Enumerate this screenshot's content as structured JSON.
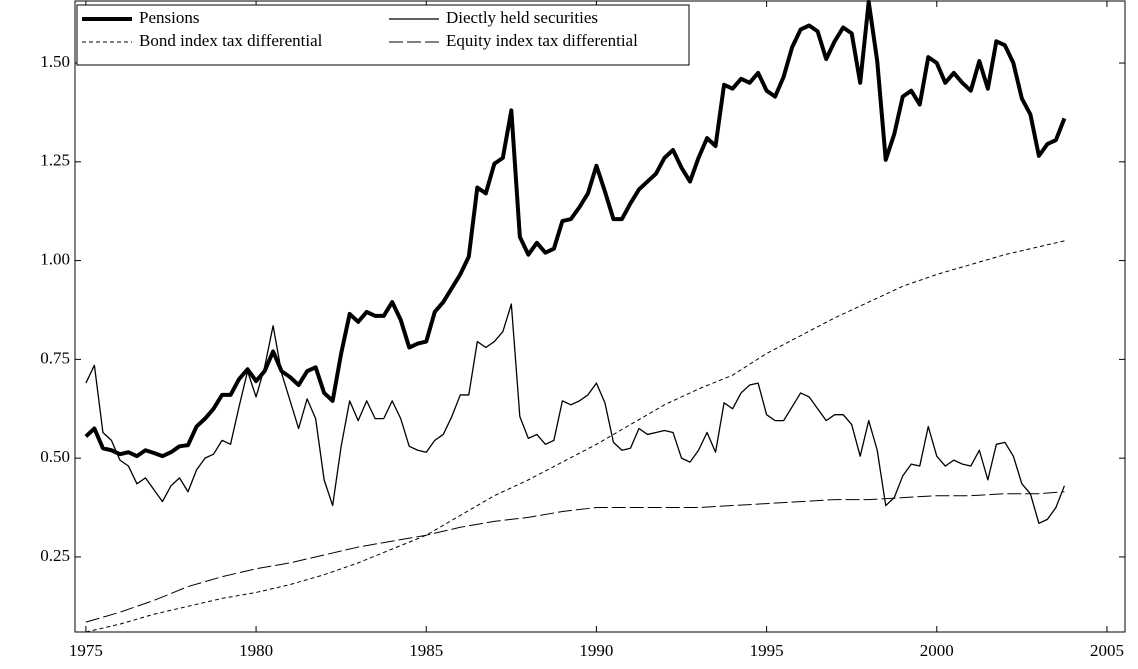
{
  "chart_data": {
    "type": "line",
    "x": [
      1975,
      1975.25,
      1975.5,
      1975.75,
      1976,
      1976.25,
      1976.5,
      1976.75,
      1977,
      1977.25,
      1977.5,
      1977.75,
      1978,
      1978.25,
      1978.5,
      1978.75,
      1979,
      1979.25,
      1979.5,
      1979.75,
      1980,
      1980.25,
      1980.5,
      1980.75,
      1981,
      1981.25,
      1981.5,
      1981.75,
      1982,
      1982.25,
      1982.5,
      1982.75,
      1983,
      1983.25,
      1983.5,
      1983.75,
      1984,
      1984.25,
      1984.5,
      1984.75,
      1985,
      1985.25,
      1985.5,
      1985.75,
      1986,
      1986.25,
      1986.5,
      1986.75,
      1987,
      1987.25,
      1987.5,
      1987.75,
      1988,
      1988.25,
      1988.5,
      1988.75,
      1989,
      1989.25,
      1989.5,
      1989.75,
      1990,
      1990.25,
      1990.5,
      1990.75,
      1991,
      1991.25,
      1991.5,
      1991.75,
      1992,
      1992.25,
      1992.5,
      1992.75,
      1993,
      1993.25,
      1993.5,
      1993.75,
      1994,
      1994.25,
      1994.5,
      1994.75,
      1995,
      1995.25,
      1995.5,
      1995.75,
      1996,
      1996.25,
      1996.5,
      1996.75,
      1997,
      1997.25,
      1997.5,
      1997.75,
      1998,
      1998.25,
      1998.5,
      1998.75,
      1999,
      1999.25,
      1999.5,
      1999.75,
      2000,
      2000.25,
      2000.5,
      2000.75,
      2001,
      2001.25,
      2001.5,
      2001.75,
      2002,
      2002.25,
      2002.5,
      2002.75,
      2003,
      2003.25,
      2003.5,
      2003.75
    ],
    "series": [
      {
        "name": "Pensions",
        "color": "#000000",
        "width": 4,
        "dash": "none",
        "values": [
          0.555,
          0.575,
          0.525,
          0.52,
          0.51,
          0.515,
          0.505,
          0.52,
          0.513,
          0.505,
          0.515,
          0.53,
          0.533,
          0.58,
          0.6,
          0.625,
          0.66,
          0.66,
          0.7,
          0.725,
          0.695,
          0.72,
          0.77,
          0.72,
          0.705,
          0.685,
          0.72,
          0.73,
          0.665,
          0.645,
          0.765,
          0.865,
          0.845,
          0.87,
          0.86,
          0.86,
          0.895,
          0.85,
          0.78,
          0.79,
          0.795,
          0.87,
          0.895,
          0.93,
          0.965,
          1.01,
          1.185,
          1.17,
          1.245,
          1.26,
          1.38,
          1.06,
          1.015,
          1.045,
          1.02,
          1.03,
          1.1,
          1.105,
          1.135,
          1.17,
          1.24,
          1.175,
          1.105,
          1.105,
          1.145,
          1.18,
          1.2,
          1.22,
          1.26,
          1.28,
          1.235,
          1.2,
          1.26,
          1.31,
          1.29,
          1.445,
          1.435,
          1.46,
          1.45,
          1.475,
          1.43,
          1.415,
          1.465,
          1.54,
          1.585,
          1.595,
          1.58,
          1.51,
          1.555,
          1.59,
          1.575,
          1.45,
          1.655,
          1.505,
          1.255,
          1.32,
          1.415,
          1.43,
          1.395,
          1.515,
          1.5,
          1.45,
          1.475,
          1.45,
          1.43,
          1.505,
          1.435,
          1.555,
          1.545,
          1.5,
          1.41,
          1.37,
          1.265,
          1.295,
          1.305,
          1.36
        ]
      },
      {
        "name": "Diectly held securities",
        "color": "#000000",
        "width": 1.3,
        "dash": "none",
        "values": [
          0.69,
          0.735,
          0.565,
          0.545,
          0.495,
          0.48,
          0.435,
          0.45,
          0.42,
          0.39,
          0.43,
          0.45,
          0.415,
          0.47,
          0.5,
          0.51,
          0.545,
          0.535,
          0.63,
          0.72,
          0.655,
          0.73,
          0.835,
          0.715,
          0.645,
          0.575,
          0.65,
          0.6,
          0.445,
          0.38,
          0.53,
          0.645,
          0.595,
          0.645,
          0.6,
          0.6,
          0.645,
          0.6,
          0.53,
          0.52,
          0.515,
          0.545,
          0.56,
          0.605,
          0.66,
          0.66,
          0.795,
          0.78,
          0.795,
          0.82,
          0.89,
          0.605,
          0.55,
          0.56,
          0.535,
          0.545,
          0.645,
          0.635,
          0.645,
          0.66,
          0.69,
          0.64,
          0.54,
          0.52,
          0.525,
          0.575,
          0.56,
          0.565,
          0.57,
          0.565,
          0.5,
          0.49,
          0.52,
          0.565,
          0.515,
          0.64,
          0.625,
          0.665,
          0.685,
          0.69,
          0.61,
          0.595,
          0.595,
          0.63,
          0.665,
          0.655,
          0.625,
          0.595,
          0.61,
          0.61,
          0.585,
          0.505,
          0.595,
          0.52,
          0.38,
          0.4,
          0.455,
          0.485,
          0.48,
          0.58,
          0.505,
          0.48,
          0.495,
          0.485,
          0.48,
          0.52,
          0.445,
          0.535,
          0.54,
          0.505,
          0.435,
          0.41,
          0.335,
          0.345,
          0.375,
          0.43
        ]
      },
      {
        "name": "Bond index tax differential",
        "color": "#000000",
        "width": 1,
        "dash": "4 3",
        "x": [
          1975,
          1976,
          1977,
          1978,
          1979,
          1980,
          1981,
          1982,
          1983,
          1984,
          1985,
          1986,
          1987,
          1988,
          1989,
          1990,
          1991,
          1992,
          1993,
          1994,
          1995,
          1996,
          1997,
          1998,
          1999,
          2000,
          2001,
          2002,
          2003,
          2003.75
        ],
        "values": [
          0.06,
          0.08,
          0.105,
          0.125,
          0.145,
          0.16,
          0.18,
          0.205,
          0.235,
          0.27,
          0.305,
          0.355,
          0.405,
          0.445,
          0.49,
          0.535,
          0.585,
          0.635,
          0.675,
          0.71,
          0.765,
          0.81,
          0.855,
          0.895,
          0.935,
          0.965,
          0.99,
          1.015,
          1.035,
          1.05
        ]
      },
      {
        "name": "Equity index tax differential",
        "color": "#000000",
        "width": 1,
        "dash": "14 4",
        "x": [
          1975,
          1976,
          1977,
          1978,
          1979,
          1980,
          1981,
          1982,
          1983,
          1984,
          1985,
          1986,
          1987,
          1988,
          1989,
          1990,
          1991,
          1992,
          1993,
          1994,
          1995,
          1996,
          1997,
          1998,
          1999,
          2000,
          2001,
          2002,
          2003,
          2003.75
        ],
        "values": [
          0.085,
          0.11,
          0.14,
          0.175,
          0.2,
          0.22,
          0.235,
          0.255,
          0.275,
          0.29,
          0.305,
          0.325,
          0.34,
          0.35,
          0.365,
          0.375,
          0.375,
          0.375,
          0.375,
          0.38,
          0.385,
          0.39,
          0.395,
          0.395,
          0.4,
          0.405,
          0.405,
          0.41,
          0.41,
          0.415
        ]
      }
    ],
    "xlim": [
      1974.68,
      2005.53
    ],
    "ylim": [
      0.06,
      1.657
    ],
    "xticks": [
      1975,
      1980,
      1985,
      1990,
      1995,
      2000,
      2005
    ],
    "yticks": [
      0.25,
      {
        "value": 0.5,
        "label": "0.50"
      },
      0.75,
      {
        "value": 1.0,
        "label": "1.00"
      },
      1.25,
      {
        "value": 1.5,
        "label": "1.50"
      }
    ],
    "grid": false,
    "legend": "upper-left"
  }
}
